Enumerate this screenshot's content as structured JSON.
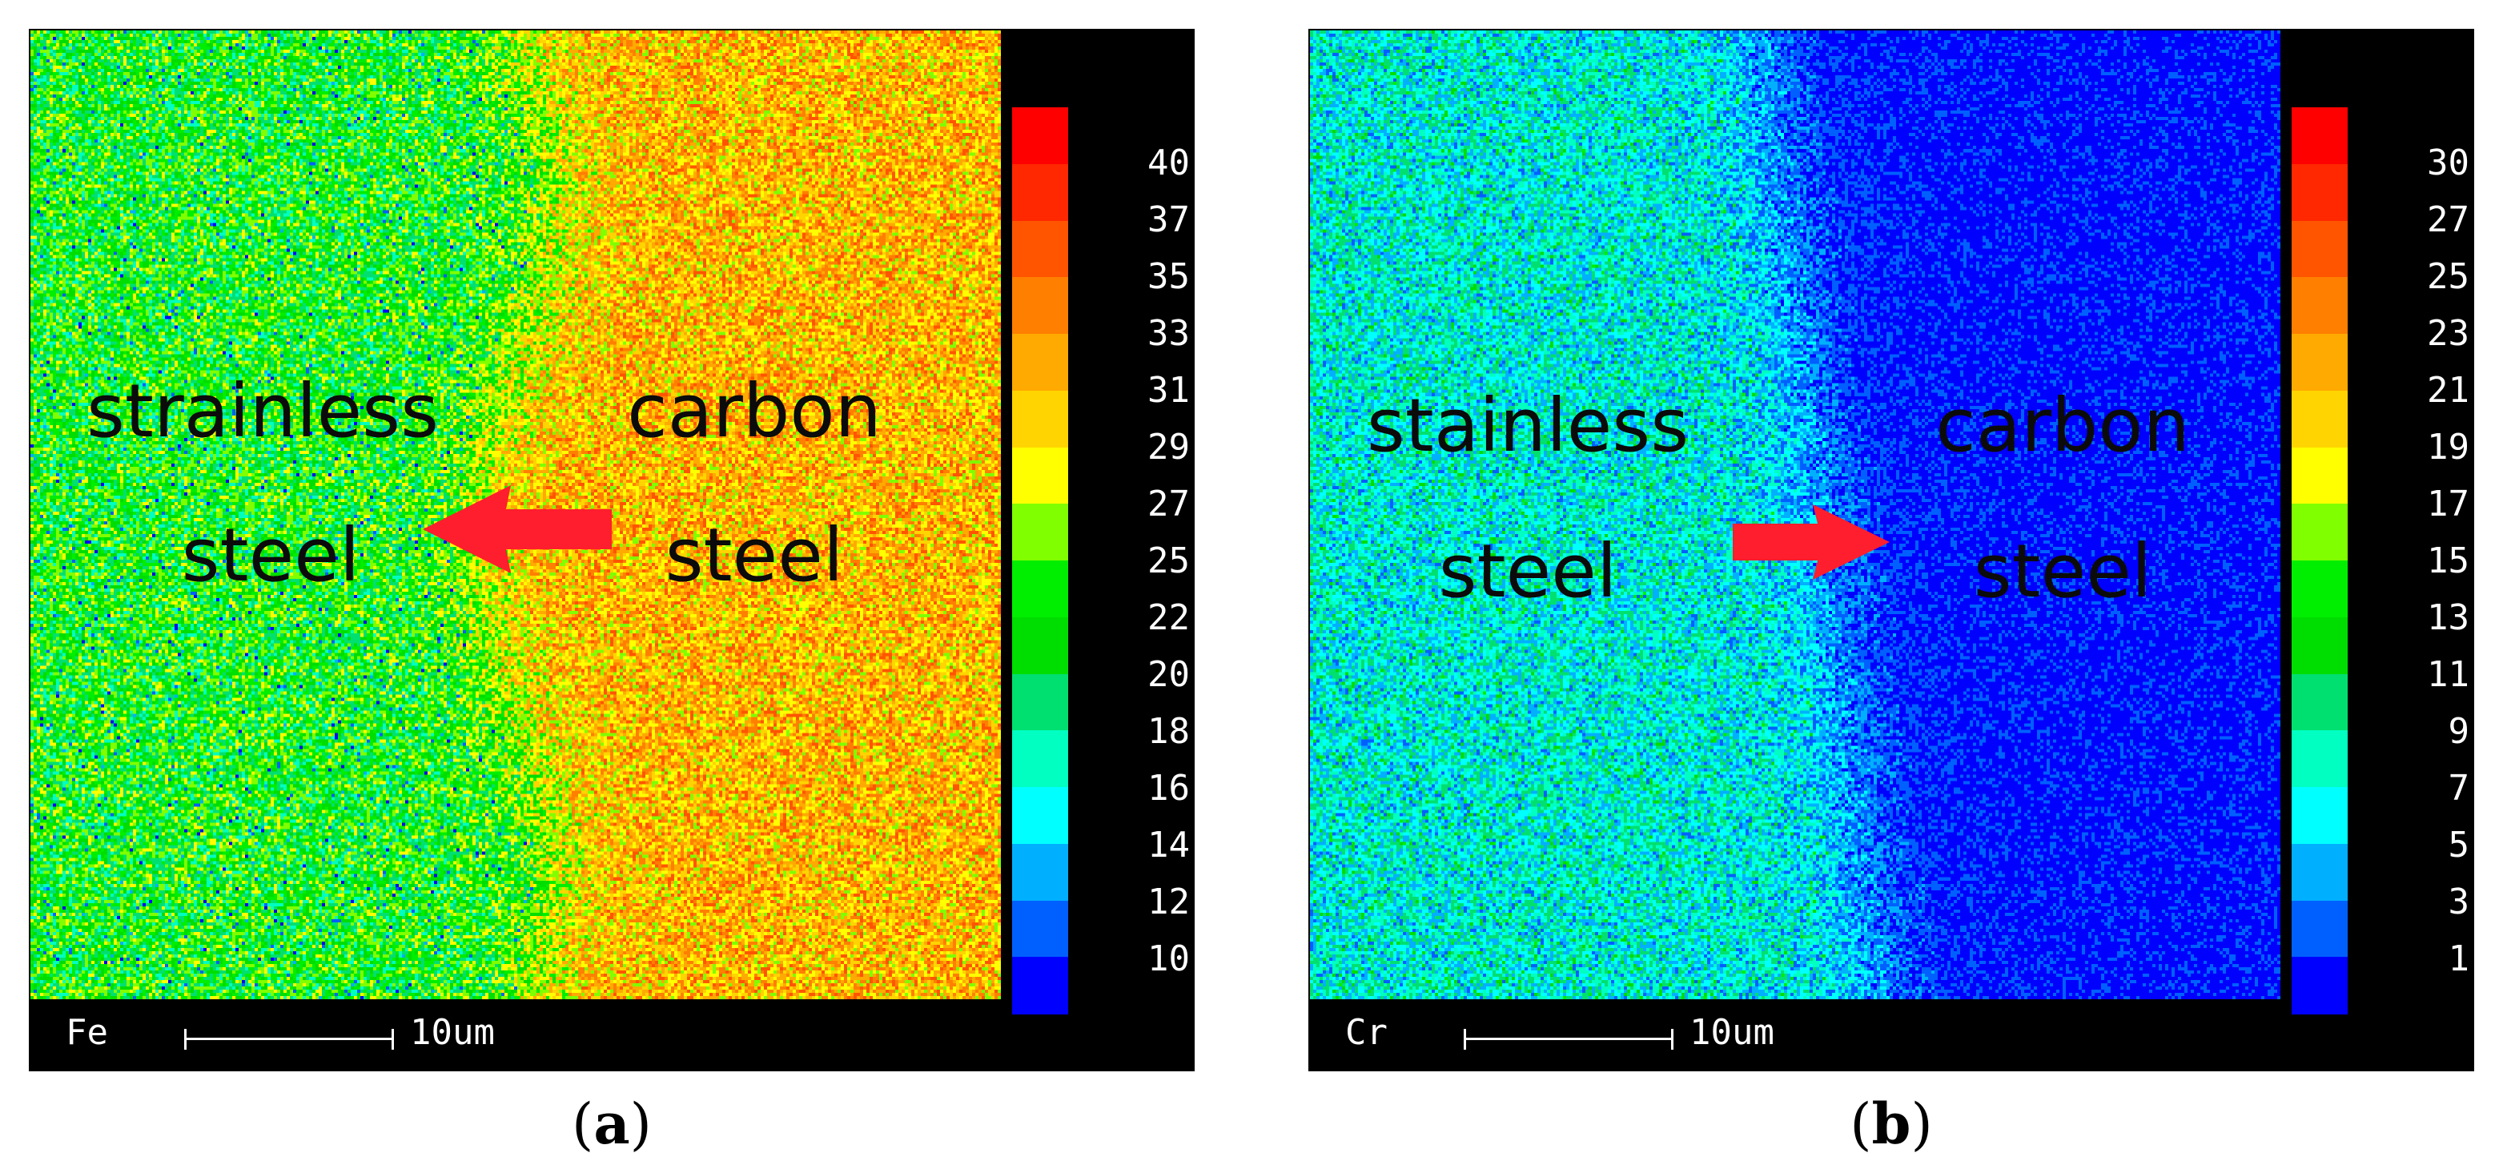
{
  "panels": [
    {
      "id": "a",
      "caption_letter": "a",
      "element": "Fe",
      "scale_label": "10um",
      "left_label_line1": "strainless",
      "left_label_line2": "steel",
      "right_label_line1": "carbon",
      "right_label_line2": "steel",
      "arrow_direction": "left",
      "colorbar_ticks": [
        "40",
        "37",
        "35",
        "33",
        "31",
        "29",
        "27",
        "25",
        "22",
        "20",
        "18",
        "16",
        "14",
        "12",
        "10"
      ]
    },
    {
      "id": "b",
      "caption_letter": "b",
      "element": "Cr",
      "scale_label": "10um",
      "left_label_line1": "stainless",
      "left_label_line2": "steel",
      "right_label_line1": "carbon",
      "right_label_line2": "steel",
      "arrow_direction": "right",
      "colorbar_ticks": [
        "30",
        "27",
        "25",
        "23",
        "21",
        "19",
        "17",
        "15",
        "13",
        "11",
        "9",
        "7",
        "5",
        "3",
        "1"
      ]
    }
  ],
  "colormap": [
    "#ff0000",
    "#ff2800",
    "#ff5500",
    "#ff7f00",
    "#ffaa00",
    "#ffd400",
    "#ffff00",
    "#80ff00",
    "#00ee00",
    "#00dd00",
    "#00e070",
    "#00ffc0",
    "#00ffff",
    "#00b0ff",
    "#0060ff",
    "#0000ff"
  ],
  "arrow_color": "#ff1e2d"
}
